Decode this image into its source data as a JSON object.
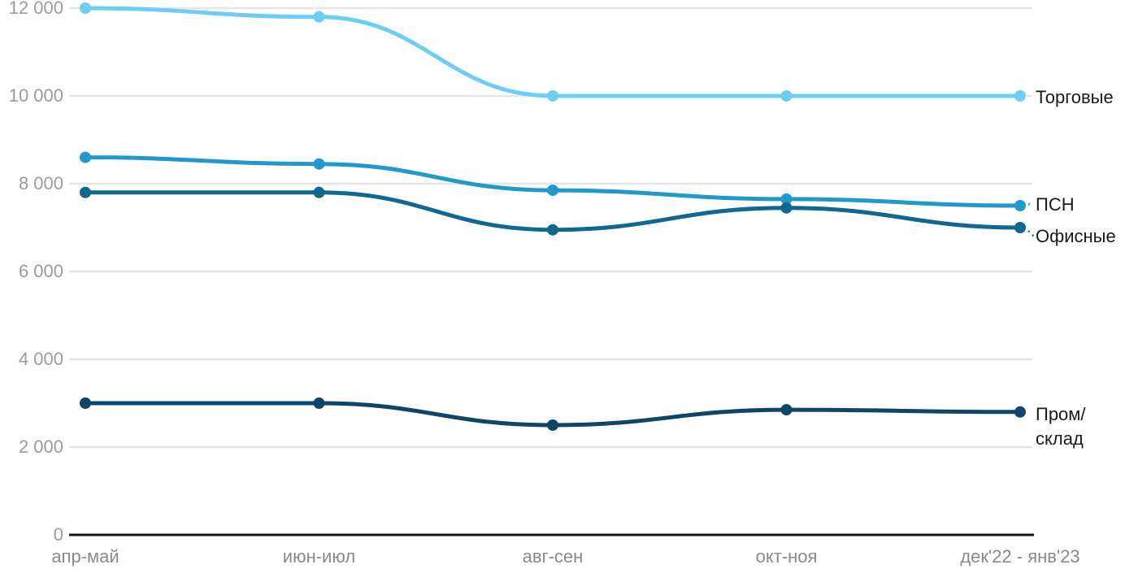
{
  "chart_data": {
    "type": "line",
    "title": "",
    "xlabel": "",
    "ylabel": "",
    "grid": true,
    "legend_position": "right-edge-direct-labels",
    "ylim": [
      0,
      12000
    ],
    "yticks": [
      0,
      2000,
      4000,
      6000,
      8000,
      10000,
      12000
    ],
    "ytick_labels": [
      "0",
      "2 000",
      "4 000",
      "6 000",
      "8 000",
      "10 000",
      "12 000"
    ],
    "categories": [
      "апр-май",
      "июн-июл",
      "авг-сен",
      "окт-ноя",
      "дек'22 - янв'23"
    ],
    "series": [
      {
        "name": "Торговые",
        "color": "#6CCDF5",
        "values": [
          12000,
          11800,
          10000,
          10000,
          10000
        ],
        "label_lines": [
          "Торговые"
        ],
        "label_dy": 2,
        "leader": false
      },
      {
        "name": "ПСН",
        "color": "#2299CB",
        "values": [
          8600,
          8450,
          7850,
          7650,
          7500
        ],
        "label_lines": [
          "ПСН"
        ],
        "label_dy": -1,
        "leader": true
      },
      {
        "name": "Офисные",
        "color": "#0E6890",
        "values": [
          7800,
          7800,
          6950,
          7450,
          7000
        ],
        "label_lines": [
          "Офисные"
        ],
        "label_dy": 11,
        "leader": true
      },
      {
        "name": "Пром/склад",
        "color": "#0D4668",
        "values": [
          3000,
          3000,
          2500,
          2850,
          2800
        ],
        "label_lines": [
          "Пром/",
          "склад"
        ],
        "label_dy": 3,
        "leader": false
      }
    ],
    "colors": {
      "gridline": "#E6E6E6",
      "axis_line": "#141414",
      "y_tick_text": "#9B9B9B",
      "x_tick_text": "#8A8A8A",
      "series_label_text": "#1A1A1A"
    }
  }
}
